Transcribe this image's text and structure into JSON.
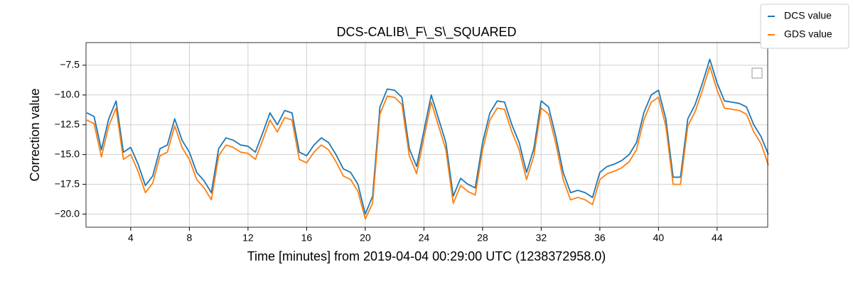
{
  "chart_data": {
    "type": "line",
    "title": "DCS-CALIB\\_F\\_S\\_SQUARED",
    "xlabel": "Time [minutes] from 2019-04-04 00:29:00 UTC (1238372958.0)",
    "ylabel": "Correction value",
    "x": [
      1,
      1.5,
      2,
      2.5,
      3,
      3.5,
      4,
      4.5,
      5,
      5.5,
      6,
      6.5,
      7,
      7.5,
      8,
      8.5,
      9,
      9.5,
      10,
      10.5,
      11,
      11.5,
      12,
      12.5,
      13,
      13.5,
      14,
      14.5,
      15,
      15.5,
      16,
      16.5,
      17,
      17.5,
      18,
      18.5,
      19,
      19.5,
      20,
      20.5,
      21,
      21.5,
      22,
      22.5,
      23,
      23.5,
      24,
      24.5,
      25,
      25.5,
      26,
      26.5,
      27,
      27.5,
      28,
      28.5,
      29,
      29.5,
      30,
      30.5,
      31,
      31.5,
      32,
      32.5,
      33,
      33.5,
      34,
      34.5,
      35,
      35.5,
      36,
      36.5,
      37,
      37.5,
      38,
      38.5,
      39,
      39.5,
      40,
      40.5,
      41,
      41.5,
      42,
      42.5,
      43,
      43.5,
      44,
      44.5,
      45,
      45.5,
      46,
      46.5,
      47,
      47.5
    ],
    "series": [
      {
        "name": "DCS value",
        "color": "#1f77b4",
        "values": [
          -11.5,
          -11.8,
          -14.6,
          -12.0,
          -10.5,
          -14.8,
          -14.4,
          -15.8,
          -17.6,
          -16.8,
          -14.5,
          -14.2,
          -12.0,
          -13.8,
          -14.8,
          -16.5,
          -17.2,
          -18.2,
          -14.5,
          -13.6,
          -13.8,
          -14.2,
          -14.3,
          -14.8,
          -13.2,
          -11.5,
          -12.5,
          -11.3,
          -11.5,
          -14.8,
          -15.1,
          -14.2,
          -13.6,
          -14.0,
          -15.0,
          -16.2,
          -16.5,
          -17.5,
          -20.0,
          -18.5,
          -11.0,
          -9.5,
          -9.6,
          -10.2,
          -14.5,
          -16.0,
          -13.0,
          -10.0,
          -12.0,
          -14.0,
          -18.5,
          -17.0,
          -17.5,
          -17.8,
          -14.0,
          -11.5,
          -10.5,
          -10.6,
          -12.5,
          -14.0,
          -16.5,
          -14.5,
          -10.5,
          -11.0,
          -13.5,
          -16.5,
          -18.2,
          -18.0,
          -18.2,
          -18.6,
          -16.5,
          -16.0,
          -15.8,
          -15.5,
          -15.0,
          -14.0,
          -11.5,
          -10.0,
          -9.6,
          -12.0,
          -16.9,
          -16.9,
          -12.0,
          -10.8,
          -9.0,
          -7.0,
          -9.0,
          -10.5,
          -10.6,
          -10.7,
          -11.0,
          -12.5,
          -13.5,
          -15.0
        ]
      },
      {
        "name": "GDS value",
        "color": "#ff7f0e",
        "values": [
          -12.1,
          -12.4,
          -15.2,
          -12.6,
          -11.1,
          -15.4,
          -15.0,
          -16.4,
          -18.2,
          -17.4,
          -15.1,
          -14.8,
          -12.6,
          -14.4,
          -15.4,
          -17.1,
          -17.8,
          -18.8,
          -15.1,
          -14.2,
          -14.4,
          -14.8,
          -14.9,
          -15.4,
          -13.8,
          -12.1,
          -13.1,
          -11.9,
          -12.1,
          -15.4,
          -15.7,
          -14.8,
          -14.2,
          -14.6,
          -15.6,
          -16.8,
          -17.1,
          -18.1,
          -20.4,
          -19.1,
          -11.6,
          -10.1,
          -10.2,
          -10.8,
          -15.1,
          -16.6,
          -13.6,
          -10.6,
          -12.6,
          -14.6,
          -19.1,
          -17.6,
          -18.1,
          -18.4,
          -14.6,
          -12.1,
          -11.1,
          -11.2,
          -13.1,
          -14.6,
          -17.1,
          -15.1,
          -11.1,
          -11.6,
          -14.1,
          -17.1,
          -18.8,
          -18.6,
          -18.8,
          -19.2,
          -17.1,
          -16.6,
          -16.4,
          -16.1,
          -15.6,
          -14.6,
          -12.1,
          -10.6,
          -10.2,
          -12.6,
          -17.5,
          -17.5,
          -12.6,
          -11.4,
          -9.6,
          -7.6,
          -9.6,
          -11.1,
          -11.2,
          -11.3,
          -11.6,
          -13.1,
          -14.1,
          -15.9
        ]
      }
    ],
    "xlim": [
      0.95,
      47.45
    ],
    "xticks": [
      4,
      8,
      12,
      16,
      20,
      24,
      28,
      32,
      36,
      40,
      44
    ],
    "ylim": [
      -21.1,
      -5.6
    ],
    "yticks": [
      {
        "value": -7.5,
        "label": "−7.5"
      },
      {
        "value": -10,
        "label": "−10.0"
      },
      {
        "value": -12.5,
        "label": "−12.5"
      },
      {
        "value": -15,
        "label": "−15.0"
      },
      {
        "value": -17.5,
        "label": "−17.5"
      },
      {
        "value": -20,
        "label": "−20.0"
      }
    ],
    "grid": true,
    "legend": "upper right"
  }
}
